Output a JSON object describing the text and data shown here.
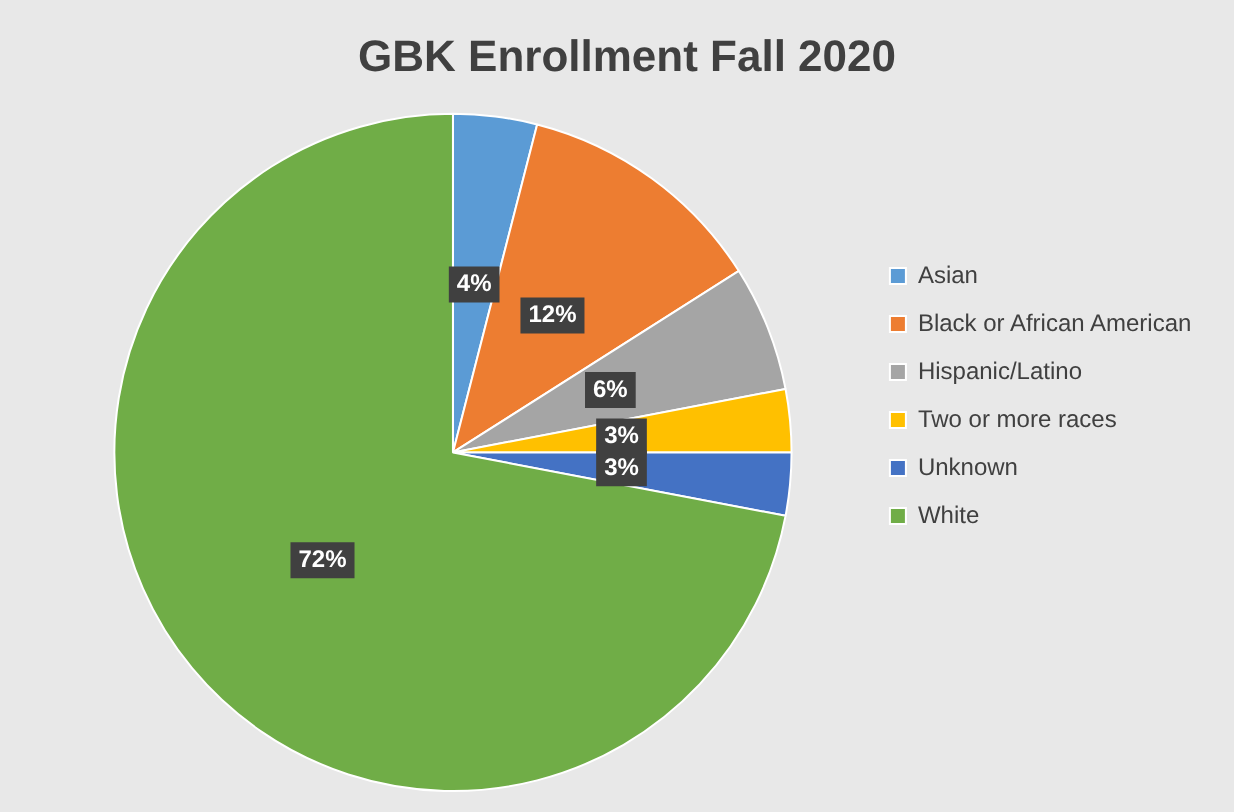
{
  "chart_data": {
    "type": "pie",
    "title": "GBK Enrollment Fall 2020",
    "categories": [
      "Asian",
      "Black or African American",
      "Hispanic/Latino",
      "Two or more races",
      "Unknown",
      "White"
    ],
    "values": [
      4,
      12,
      6,
      3,
      3,
      72
    ],
    "colors": [
      "#5b9bd5",
      "#ed7d31",
      "#a5a5a5",
      "#ffc000",
      "#4472c4",
      "#70ad47"
    ],
    "value_labels": [
      "4%",
      "12%",
      "6%",
      "3%",
      "3%",
      "72%"
    ],
    "legend": "right"
  }
}
